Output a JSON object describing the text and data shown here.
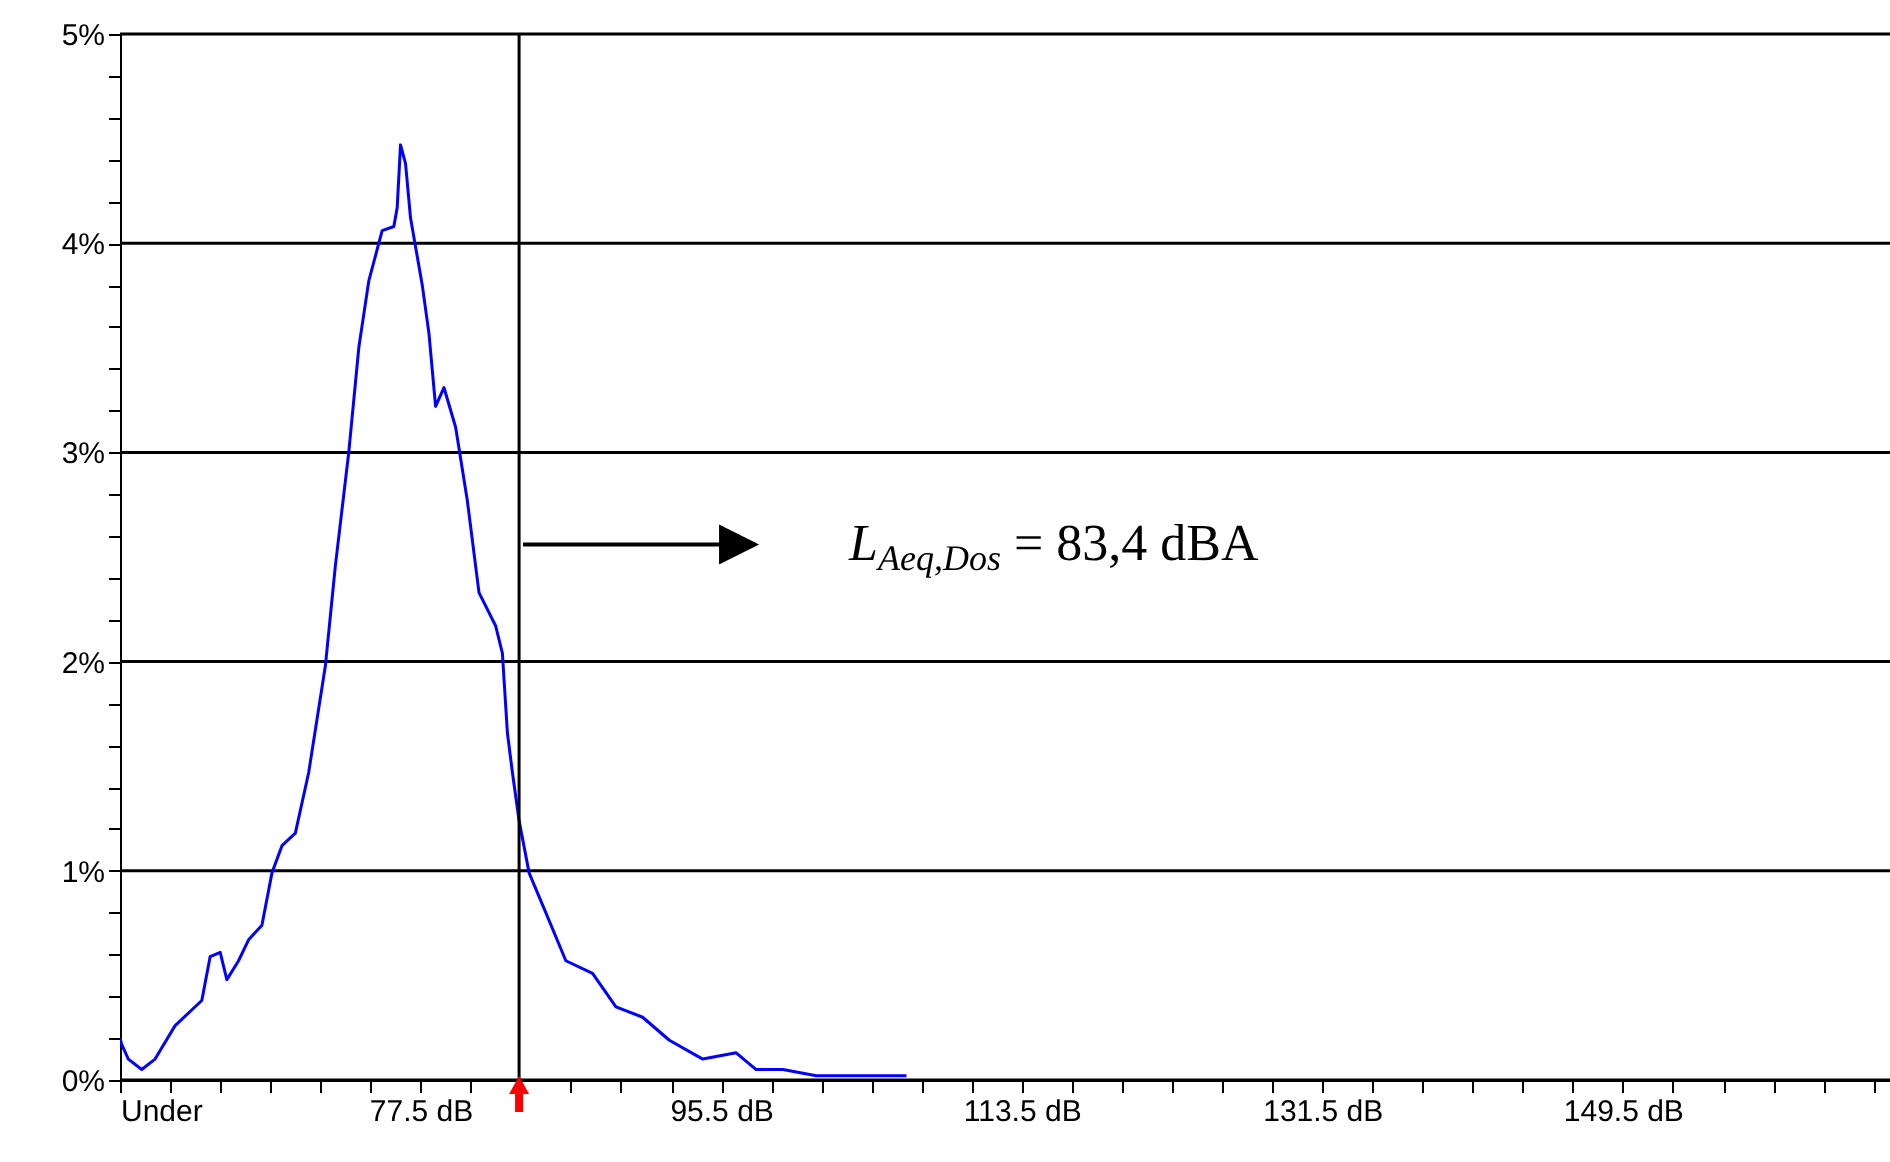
{
  "chart_data": {
    "type": "line",
    "x": [
      59.5,
      59.6,
      60.0,
      60.8,
      61.6,
      62.8,
      64.4,
      64.9,
      65.5,
      65.9,
      66.6,
      67.2,
      68.0,
      68.6,
      69.2,
      70.0,
      70.8,
      71.8,
      72.4,
      73.2,
      73.8,
      74.4,
      75.2,
      75.9,
      76.1,
      76.3,
      76.6,
      76.9,
      77.6,
      78.0,
      78.4,
      78.9,
      79.6,
      80.3,
      81.0,
      82.0,
      82.4,
      82.7,
      83.0,
      83.4,
      84.0,
      85.0,
      86.2,
      87.8,
      89.2,
      90.8,
      92.4,
      94.4,
      96.4,
      97.6,
      99.2,
      101.2,
      106.6
    ],
    "series": [
      {
        "color": "#0000ff",
        "values": [
          0.2,
          0.17,
          0.1,
          0.05,
          0.1,
          0.26,
          0.38,
          0.59,
          0.61,
          0.48,
          0.57,
          0.67,
          0.74,
          0.99,
          1.12,
          1.18,
          1.47,
          1.98,
          2.46,
          3.0,
          3.5,
          3.82,
          4.06,
          4.08,
          4.17,
          4.47,
          4.38,
          4.12,
          3.8,
          3.57,
          3.22,
          3.31,
          3.12,
          2.77,
          2.33,
          2.17,
          2.04,
          1.66,
          1.47,
          1.24,
          0.99,
          0.8,
          0.57,
          0.51,
          0.35,
          0.3,
          0.19,
          0.1,
          0.13,
          0.05,
          0.05,
          0.02,
          0.02
        ]
      }
    ],
    "xlim": [
      59.5,
      165.5
    ],
    "xticks": [
      {
        "value": 59.5,
        "label": "Under"
      },
      {
        "value": 62.5,
        "label": null
      },
      {
        "value": 65.5,
        "label": null
      },
      {
        "value": 68.5,
        "label": null
      },
      {
        "value": 71.5,
        "label": null
      },
      {
        "value": 74.5,
        "label": null
      },
      {
        "value": 77.5,
        "label": "77.5 dB"
      },
      {
        "value": 80.5,
        "label": null
      },
      {
        "value": 83.5,
        "label": null
      },
      {
        "value": 86.5,
        "label": null
      },
      {
        "value": 89.5,
        "label": null
      },
      {
        "value": 92.5,
        "label": null
      },
      {
        "value": 95.5,
        "label": "95.5 dB"
      },
      {
        "value": 98.5,
        "label": null
      },
      {
        "value": 101.5,
        "label": null
      },
      {
        "value": 104.5,
        "label": null
      },
      {
        "value": 107.5,
        "label": null
      },
      {
        "value": 110.5,
        "label": null
      },
      {
        "value": 113.5,
        "label": "113.5 dB"
      },
      {
        "value": 116.5,
        "label": null
      },
      {
        "value": 119.5,
        "label": null
      },
      {
        "value": 122.5,
        "label": null
      },
      {
        "value": 125.5,
        "label": null
      },
      {
        "value": 128.5,
        "label": null
      },
      {
        "value": 131.5,
        "label": "131.5 dB"
      },
      {
        "value": 134.5,
        "label": null
      },
      {
        "value": 137.5,
        "label": null
      },
      {
        "value": 140.5,
        "label": null
      },
      {
        "value": 143.5,
        "label": null
      },
      {
        "value": 146.5,
        "label": null
      },
      {
        "value": 149.5,
        "label": "149.5 dB"
      },
      {
        "value": 152.5,
        "label": null
      },
      {
        "value": 155.5,
        "label": null
      },
      {
        "value": 158.5,
        "label": null
      },
      {
        "value": 161.5,
        "label": null
      },
      {
        "value": 164.5,
        "label": null
      }
    ],
    "ylim": [
      0,
      5
    ],
    "yticks": [
      {
        "value": 0,
        "label": "0%"
      },
      {
        "value": 0.2,
        "label": null
      },
      {
        "value": 0.4,
        "label": null
      },
      {
        "value": 0.6,
        "label": null
      },
      {
        "value": 0.8,
        "label": null
      },
      {
        "value": 1,
        "label": "1%"
      },
      {
        "value": 1.2,
        "label": null
      },
      {
        "value": 1.4,
        "label": null
      },
      {
        "value": 1.6,
        "label": null
      },
      {
        "value": 1.8,
        "label": null
      },
      {
        "value": 2,
        "label": "2%"
      },
      {
        "value": 2.2,
        "label": null
      },
      {
        "value": 2.4,
        "label": null
      },
      {
        "value": 2.6,
        "label": null
      },
      {
        "value": 2.8,
        "label": null
      },
      {
        "value": 3,
        "label": "3%"
      },
      {
        "value": 3.2,
        "label": null
      },
      {
        "value": 3.4,
        "label": null
      },
      {
        "value": 3.6,
        "label": null
      },
      {
        "value": 3.8,
        "label": null
      },
      {
        "value": 4,
        "label": "4%"
      },
      {
        "value": 4.2,
        "label": null
      },
      {
        "value": 4.4,
        "label": null
      },
      {
        "value": 4.6,
        "label": null
      },
      {
        "value": 4.8,
        "label": null
      },
      {
        "value": 5,
        "label": "5%"
      }
    ],
    "grid": "y",
    "ref_lines": [
      {
        "axis": "x",
        "value": 83.4,
        "color": "#000000"
      }
    ],
    "annotations": [
      "L$_{Aeq,Dos}$ = 83,4 dBA"
    ]
  }
}
